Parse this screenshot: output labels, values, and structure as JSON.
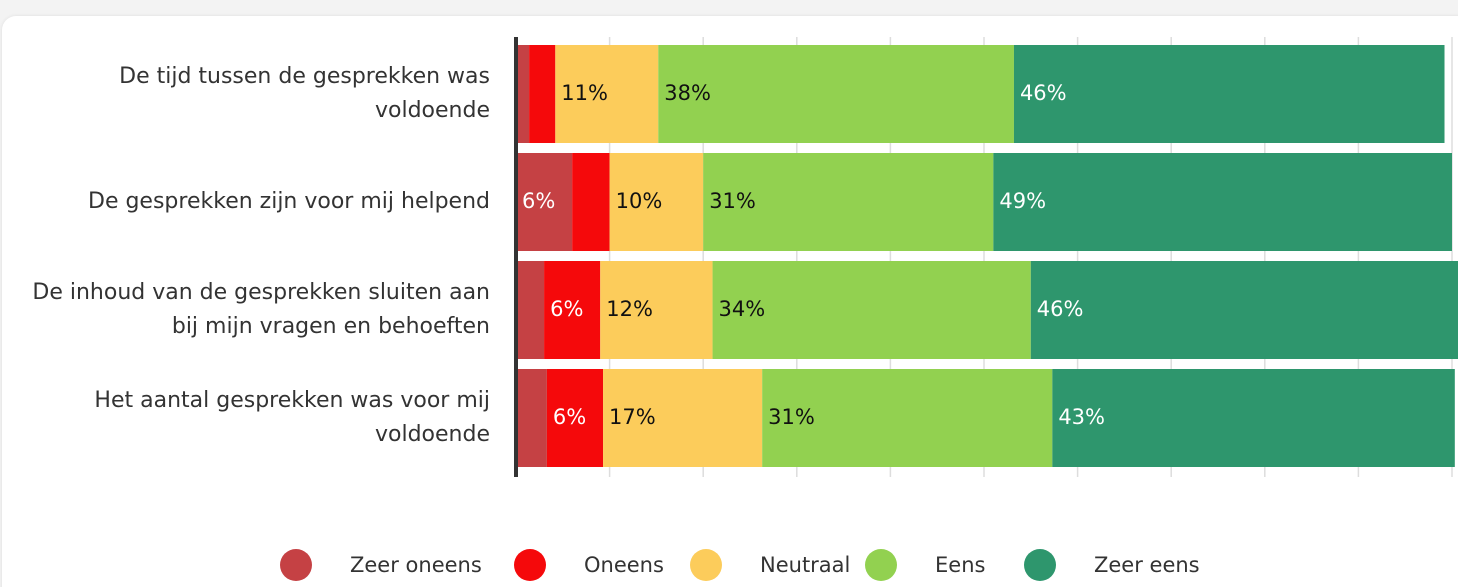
{
  "chart_data": {
    "type": "stacked-bar-horizontal",
    "categories": [
      "De tijd tussen de gesprekken was voldoende",
      "De gesprekken zijn voor mij helpend",
      "De inhoud van de gesprekken sluiten aan bij mijn vragen en behoeften",
      "Het aantal gesprekken was voor mij voldoende"
    ],
    "series": [
      {
        "name": "Zeer oneens",
        "color": "#c54144",
        "values": [
          1.4,
          6,
          3,
          3.3
        ],
        "value_labels": [
          null,
          "6%",
          null,
          null
        ]
      },
      {
        "name": "Oneens",
        "color": "#f5090b",
        "values": [
          2.8,
          4,
          6,
          6
        ],
        "value_labels": [
          null,
          null,
          "6%",
          "6%"
        ]
      },
      {
        "name": "Neutraal",
        "color": "#fccc5b",
        "values": [
          11,
          10,
          12,
          17
        ],
        "value_labels": [
          "11%",
          "10%",
          "12%",
          "17%"
        ]
      },
      {
        "name": "Eens",
        "color": "#92d150",
        "values": [
          38,
          31,
          34,
          31
        ],
        "value_labels": [
          "38%",
          "31%",
          "34%",
          "31%"
        ]
      },
      {
        "name": "Zeer eens",
        "color": "#2e966d",
        "values": [
          46,
          49,
          46,
          43
        ],
        "value_labels": [
          "46%",
          "49%",
          "46%",
          "43%"
        ]
      }
    ],
    "xlim": [
      0,
      100
    ],
    "xticks": [
      0,
      10,
      20,
      30,
      40,
      50,
      60,
      70,
      80,
      90,
      100
    ],
    "grid": true
  }
}
